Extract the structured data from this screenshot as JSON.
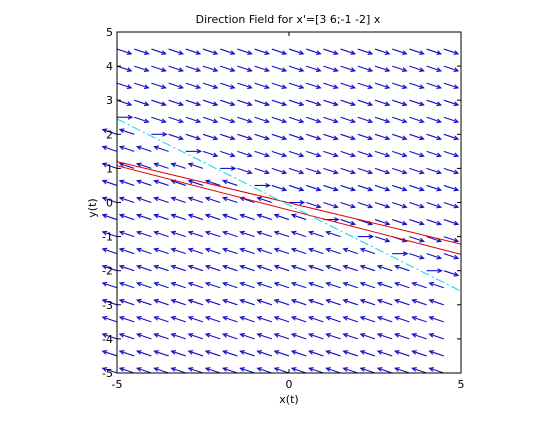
{
  "chart_data": {
    "type": "direction-field",
    "title": "Direction Field for x'=[3 6;-1 -2] x",
    "xlabel": "x(t)",
    "ylabel": "y(t)",
    "xlim": [
      -5,
      5
    ],
    "ylim": [
      -5,
      5
    ],
    "xticks": [
      -5,
      0,
      5
    ],
    "yticks": [
      -5,
      -4,
      -3,
      -2,
      -1,
      0,
      1,
      2,
      3,
      4,
      5
    ],
    "matrix": [
      [
        3,
        6
      ],
      [
        -1,
        -2
      ]
    ],
    "field": {
      "x_values": [
        -5,
        -4.5,
        -4,
        -3.5,
        -3,
        -2.5,
        -2,
        -1.5,
        -1,
        -0.5,
        0,
        0.5,
        1,
        1.5,
        2,
        2.5,
        3,
        3.5,
        4,
        4.5
      ],
      "y_values": [
        -5,
        -4.5,
        -4,
        -3.5,
        -3,
        -2.5,
        -2,
        -1.5,
        -1,
        -0.5,
        0,
        0.5,
        1,
        1.5,
        2,
        2.5,
        3,
        3.5,
        4,
        4.5
      ],
      "color": "#1010c8"
    },
    "series": [
      {
        "style": "solid",
        "color": "#e00000",
        "x": [
          -5,
          5
        ],
        "y": [
          1.2,
          -1.22
        ]
      },
      {
        "style": "solid",
        "color": "#e00000",
        "x": [
          -5,
          5
        ],
        "y": [
          1.08,
          -1.52
        ]
      },
      {
        "style": "dash-dot",
        "color": "#00d8e8",
        "x": [
          -5,
          5
        ],
        "y": [
          2.45,
          -2.6
        ]
      }
    ],
    "grid": false,
    "legend": false
  }
}
